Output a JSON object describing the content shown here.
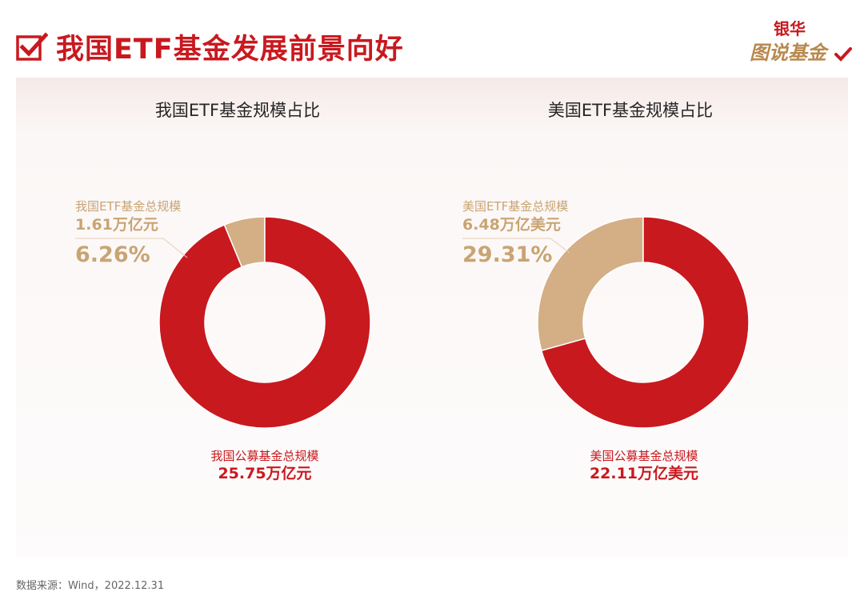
{
  "header": {
    "title": "我国ETF基金发展前景向好",
    "logo_line1": "银华",
    "logo_line2": "图说基金"
  },
  "source": "数据来源：Wind，2022.12.31",
  "colors": {
    "accent_red": "#c8191f",
    "tan": "#d4ae84",
    "title_red": "#c8191f"
  },
  "icons": {
    "title_icon": "checkbox-check-icon",
    "logo_icon": "check-icon"
  },
  "charts": {
    "china": {
      "title": "我国ETF基金规模占比",
      "etf_label": "我国ETF基金总规模",
      "etf_amount": "1.61万亿元",
      "etf_pct": "6.26%",
      "total_label": "我国公募基金总规模",
      "total_amount": "25.75万亿元"
    },
    "us": {
      "title": "美国ETF基金规模占比",
      "etf_label": "美国ETF基金总规模",
      "etf_amount": "6.48万亿美元",
      "etf_pct": "29.31%",
      "total_label": "美国公募基金总规模",
      "total_amount": "22.11万亿美元"
    }
  },
  "chart_data": [
    {
      "type": "pie",
      "subtype": "donut",
      "title": "我国ETF基金规模占比",
      "slices": [
        {
          "label": "我国ETF基金总规模",
          "value": 6.26,
          "amount": "1.61万亿元",
          "color": "#d4ae84"
        },
        {
          "label": "我国公募基金总规模",
          "value": 93.74,
          "amount": "25.75万亿元",
          "color": "#c8191f"
        }
      ]
    },
    {
      "type": "pie",
      "subtype": "donut",
      "title": "美国ETF基金规模占比",
      "slices": [
        {
          "label": "美国ETF基金总规模",
          "value": 29.31,
          "amount": "6.48万亿美元",
          "color": "#d4ae84"
        },
        {
          "label": "美国公募基金总规模",
          "value": 70.69,
          "amount": "22.11万亿美元",
          "color": "#c8191f"
        }
      ]
    }
  ]
}
